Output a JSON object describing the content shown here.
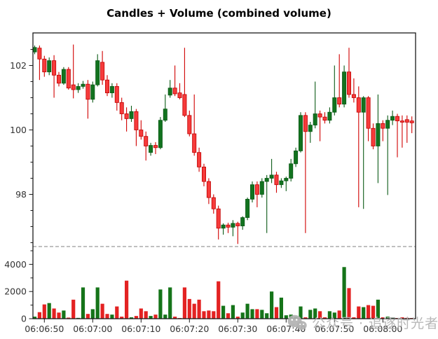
{
  "title": "Candles + Volume (combined volume)",
  "watermark": {
    "text": "公众号 · 追逐时光者",
    "logo": "wechat-icon",
    "color": "#b2b2b2"
  },
  "chart_data": {
    "type": "candlestick_with_volume",
    "title": "Candles + Volume (combined volume)",
    "x_start_time": "06:06:48",
    "x_interval_seconds": 1,
    "x_tick_labels": [
      "06:06:50",
      "06:07:00",
      "06:07:10",
      "06:07:20",
      "06:07:30",
      "06:07:40",
      "06:07:50",
      "06:08:00"
    ],
    "price_tick_labels": [
      "102",
      "100",
      "98"
    ],
    "price_ticks": [
      102,
      100,
      98
    ],
    "price_minor_tick_step": 0.5,
    "price_axis_range": [
      96.35,
      103.02
    ],
    "volume_tick_labels": [
      "4000",
      "2000",
      "0"
    ],
    "volume_ticks": [
      4000,
      2000,
      0
    ],
    "volume_minor_ticks": [
      1000,
      3000,
      5000
    ],
    "volume_axis_range": [
      0,
      5300
    ],
    "separator_line_volume_level": 5300,
    "grid": false,
    "legend": "none",
    "colors": {
      "up_body": "#12731f",
      "up_edge": "#0b5a16",
      "down_body": "#f63b3b",
      "down_edge": "#c00000",
      "down_wick": "#d10000",
      "volume_up": "#157419",
      "volume_down": "#e32222",
      "spine": "#1a1a1a",
      "tick_label": "#333333",
      "separator": "#808080"
    },
    "candles_format": [
      "open",
      "high",
      "low",
      "close",
      "volume"
    ],
    "candles": [
      [
        102.42,
        102.62,
        102.35,
        102.56,
        150
      ],
      [
        102.54,
        102.62,
        101.55,
        102.2,
        480
      ],
      [
        102.2,
        102.3,
        101.65,
        101.8,
        1050
      ],
      [
        101.8,
        102.25,
        101.7,
        102.15,
        1150
      ],
      [
        102.15,
        102.32,
        101.0,
        101.7,
        750
      ],
      [
        101.7,
        101.8,
        101.35,
        101.45,
        450
      ],
      [
        101.45,
        101.95,
        101.4,
        101.88,
        600
      ],
      [
        101.88,
        101.95,
        101.25,
        101.3,
        80
      ],
      [
        101.4,
        102.65,
        100.98,
        101.25,
        1400
      ],
      [
        101.25,
        101.45,
        101.15,
        101.35,
        60
      ],
      [
        101.35,
        101.52,
        101.28,
        101.42,
        2300
      ],
      [
        101.42,
        101.55,
        100.35,
        100.95,
        350
      ],
      [
        100.95,
        101.5,
        100.85,
        101.4,
        700
      ],
      [
        101.4,
        102.35,
        101.35,
        102.15,
        2300
      ],
      [
        102.1,
        102.45,
        101.4,
        101.55,
        1100
      ],
      [
        101.55,
        101.7,
        101.05,
        101.15,
        350
      ],
      [
        101.15,
        101.45,
        101.0,
        101.35,
        300
      ],
      [
        101.35,
        101.45,
        100.6,
        100.85,
        900
      ],
      [
        100.85,
        101.0,
        100.3,
        100.5,
        150
      ],
      [
        100.5,
        100.7,
        99.95,
        100.35,
        2800
      ],
      [
        100.35,
        100.75,
        100.25,
        100.57,
        100
      ],
      [
        100.57,
        100.65,
        99.5,
        100.0,
        200
      ],
      [
        100.0,
        100.3,
        99.7,
        99.8,
        750
      ],
      [
        99.8,
        99.95,
        99.05,
        99.5,
        550
      ],
      [
        99.3,
        99.6,
        99.2,
        99.52,
        200
      ],
      [
        99.52,
        99.62,
        99.25,
        99.45,
        300
      ],
      [
        99.45,
        100.4,
        99.4,
        100.3,
        2150
      ],
      [
        100.3,
        101.1,
        100.25,
        100.65,
        300
      ],
      [
        101.08,
        101.55,
        101.0,
        101.3,
        2300
      ],
      [
        101.3,
        102.0,
        101.05,
        101.12,
        150
      ],
      [
        101.15,
        101.45,
        100.95,
        101.0,
        50
      ],
      [
        101.1,
        102.55,
        100.4,
        100.45,
        2300
      ],
      [
        100.45,
        100.6,
        99.8,
        99.88,
        1450
      ],
      [
        99.88,
        101.1,
        99.2,
        99.3,
        1100
      ],
      [
        99.3,
        99.45,
        98.7,
        98.85,
        1400
      ],
      [
        98.85,
        98.95,
        98.25,
        98.4,
        550
      ],
      [
        98.4,
        98.5,
        97.7,
        97.9,
        600
      ],
      [
        97.9,
        98.0,
        97.4,
        97.55,
        550
      ],
      [
        97.55,
        97.65,
        96.6,
        96.95,
        2750
      ],
      [
        96.95,
        97.1,
        96.75,
        97.05,
        950
      ],
      [
        97.05,
        97.12,
        96.8,
        96.98,
        400
      ],
      [
        96.98,
        97.2,
        96.7,
        97.1,
        1000
      ],
      [
        97.1,
        97.15,
        96.46,
        97.02,
        150
      ],
      [
        97.02,
        97.32,
        96.9,
        97.28,
        450
      ],
      [
        97.28,
        97.9,
        97.2,
        97.85,
        1100
      ],
      [
        97.85,
        98.4,
        97.75,
        98.3,
        700
      ],
      [
        98.3,
        98.4,
        97.6,
        98.0,
        700
      ],
      [
        98.0,
        98.5,
        97.9,
        98.4,
        650
      ],
      [
        98.4,
        98.6,
        96.8,
        98.5,
        400
      ],
      [
        98.5,
        99.1,
        98.35,
        98.6,
        2000
      ],
      [
        98.6,
        98.7,
        98.05,
        98.3,
        850
      ],
      [
        98.3,
        98.5,
        98.2,
        98.42,
        1550
      ],
      [
        98.42,
        98.55,
        98.1,
        98.5,
        250
      ],
      [
        98.5,
        99.1,
        98.4,
        98.95,
        300
      ],
      [
        98.95,
        99.45,
        98.85,
        99.35,
        150
      ],
      [
        99.35,
        100.55,
        99.3,
        100.45,
        900
      ],
      [
        100.45,
        100.55,
        96.8,
        99.95,
        100
      ],
      [
        99.95,
        100.25,
        99.6,
        100.15,
        650
      ],
      [
        100.15,
        101.5,
        100.05,
        100.5,
        750
      ],
      [
        100.5,
        100.6,
        99.65,
        100.4,
        550
      ],
      [
        100.4,
        100.55,
        100.2,
        100.3,
        100
      ],
      [
        100.3,
        100.7,
        100.2,
        100.55,
        550
      ],
      [
        100.55,
        102.0,
        100.45,
        101.0,
        450
      ],
      [
        101.0,
        102.35,
        100.7,
        100.8,
        600
      ],
      [
        100.8,
        102.0,
        100.7,
        101.8,
        3800
      ],
      [
        101.8,
        102.55,
        101.0,
        101.1,
        2250
      ],
      [
        101.1,
        101.6,
        100.85,
        101.0,
        100
      ],
      [
        101.0,
        101.35,
        97.6,
        100.55,
        900
      ],
      [
        100.55,
        101.05,
        97.55,
        101.0,
        850
      ],
      [
        101.0,
        101.05,
        99.65,
        100.05,
        1000
      ],
      [
        100.05,
        100.2,
        99.4,
        99.5,
        950
      ],
      [
        99.5,
        101.1,
        98.35,
        100.2,
        1400
      ],
      [
        100.2,
        100.3,
        99.65,
        100.05,
        100
      ],
      [
        100.05,
        100.45,
        97.98,
        100.3,
        150
      ],
      [
        100.3,
        100.6,
        100.15,
        100.42,
        100
      ],
      [
        100.42,
        100.5,
        99.15,
        100.28,
        50
      ],
      [
        100.28,
        100.45,
        99.45,
        100.24,
        100
      ],
      [
        100.32,
        100.45,
        99.6,
        100.24,
        60
      ],
      [
        100.28,
        100.42,
        99.9,
        100.22,
        50
      ]
    ]
  }
}
